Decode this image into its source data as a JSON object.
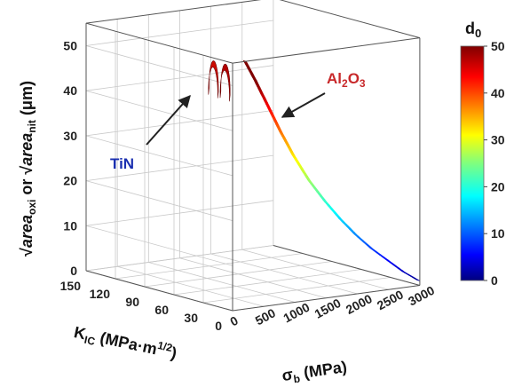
{
  "chart_data": {
    "type": "surface3d",
    "title": "",
    "xlabel": "σ_b (MPa)",
    "ylabel": "K_IC (MPa·m^1/2)",
    "zlabel": "√area_oxi or √area_nit (μm)",
    "x_ticks": [
      "0",
      "500",
      "1000",
      "1500",
      "2000",
      "2500",
      "3000"
    ],
    "y_ticks": [
      "30",
      "60",
      "90",
      "120",
      "150"
    ],
    "y_tick_zero": "0",
    "z_ticks": [
      "0",
      "10",
      "20",
      "30",
      "40",
      "50"
    ],
    "xlim": [
      0,
      3000
    ],
    "ylim": [
      0,
      150
    ],
    "zlim": [
      0,
      55
    ],
    "colorbar": {
      "label": "d_0",
      "ticks": [
        "0",
        "10",
        "20",
        "30",
        "40",
        "50"
      ],
      "range": [
        0,
        50
      ],
      "colormap": "jet"
    },
    "surface_profile": {
      "x": [
        220,
        400,
        600,
        800,
        1000,
        1250,
        1500,
        1750,
        2000,
        2250,
        2500,
        2750,
        3000
      ],
      "z": [
        55,
        50,
        44,
        38,
        32.5,
        26.5,
        21.5,
        17,
        13,
        9.5,
        6.5,
        3.5,
        1
      ],
      "y_extent": [
        0,
        3
      ]
    },
    "annotations": [
      {
        "text": "TiN",
        "color": "#1a2fb0"
      },
      {
        "text": "Al2O3",
        "color": "#c8282a"
      }
    ],
    "grid": true
  }
}
